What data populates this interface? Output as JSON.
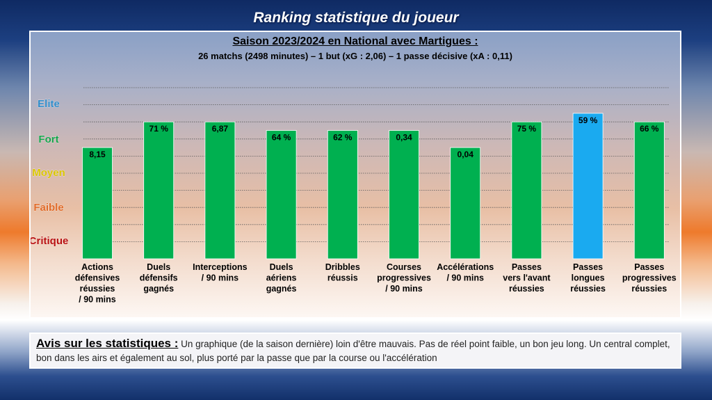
{
  "page": {
    "title": "Ranking statistique du joueur"
  },
  "chart_data": {
    "type": "bar",
    "title": "Saison 2023/2024 en National avec Martigues :",
    "subtitle": "26 matchs (2498 minutes) – 1 but (xG : 2,06) – 1 passe décisive (xA : 0,11)",
    "levels": [
      {
        "name": "Elite",
        "color": "#2e8bc9"
      },
      {
        "name": "Fort",
        "color": "#15a34a"
      },
      {
        "name": "Moyen",
        "color": "#d9c400"
      },
      {
        "name": "Faible",
        "color": "#e06a28"
      },
      {
        "name": "Critique",
        "color": "#b80f0f"
      }
    ],
    "ylim": [
      0,
      100
    ],
    "grid": true,
    "categories": [
      [
        "Actions",
        "défensives",
        "réussies",
        "/ 90 mins"
      ],
      [
        "Duels",
        "défensifs",
        "gagnés"
      ],
      [
        "Interceptions",
        "/ 90 mins"
      ],
      [
        "Duels",
        "aériens",
        "gagnés"
      ],
      [
        "Dribbles",
        "réussis"
      ],
      [
        "Courses",
        "progressives",
        "/ 90 mins"
      ],
      [
        "Accélérations",
        "/ 90 mins"
      ],
      [
        "Passes",
        "vers l'avant",
        "réussies"
      ],
      [
        "Passes",
        "longues",
        "réussies"
      ],
      [
        "Passes",
        "progressives",
        "réussies"
      ]
    ],
    "labels": [
      "8,15",
      "71 %",
      "6,87",
      "64 %",
      "62 %",
      "0,34",
      "0,04",
      "75 %",
      "59 %",
      "66 %"
    ],
    "values": [
      65,
      80,
      80,
      75,
      75,
      75,
      65,
      80,
      85,
      80
    ],
    "colors": [
      "#00b050",
      "#00b050",
      "#00b050",
      "#00b050",
      "#00b050",
      "#00b050",
      "#00b050",
      "#00b050",
      "#1aaaf0",
      "#00b050"
    ]
  },
  "opinion": {
    "title": "Avis sur les statistiques :",
    "text": " Un graphique (de la saison dernière) loin d'être mauvais. Pas de réel point faible, un bon jeu long. Un central complet, bon dans les airs et également au sol, plus porté par la passe que par la course ou l'accélération"
  }
}
